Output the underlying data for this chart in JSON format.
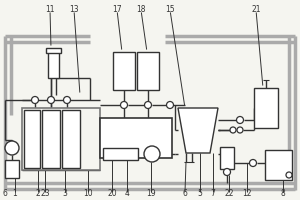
{
  "bg": "#f5f5f0",
  "lc": "#555555",
  "dc": "#333333",
  "wc": "#ffffff",
  "gc": "#aaaaaa",
  "figsize": [
    3.0,
    2.0
  ],
  "dpi": 100
}
